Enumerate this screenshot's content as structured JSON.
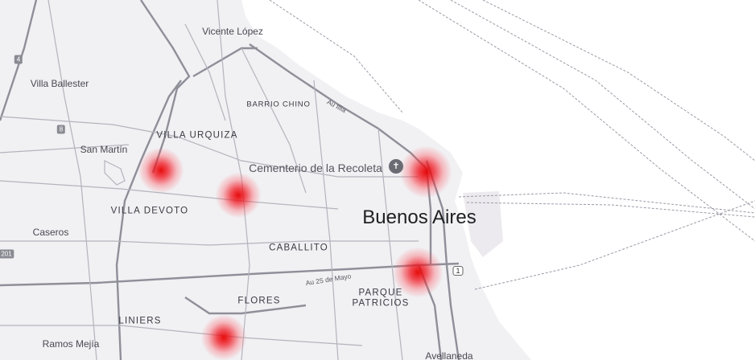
{
  "map": {
    "city_label": "Buenos Aires",
    "poi": {
      "name": "Cementerio de la Recoleta",
      "icon": "cemetery-icon"
    },
    "colors": {
      "land": "#f1f0f3",
      "water": "#ffffff",
      "roads": "#9a9aa4",
      "heat": "#e60000"
    },
    "places": [
      {
        "id": "vicente-lopez",
        "name": "Vicente López"
      },
      {
        "id": "villa-ballester",
        "name": "Villa Ballester"
      },
      {
        "id": "san-martin",
        "name": "San Martín"
      },
      {
        "id": "caseros",
        "name": "Caseros"
      },
      {
        "id": "ramos-mejia",
        "name": "Ramos Mejía"
      },
      {
        "id": "avellaneda",
        "name": "Avellaneda"
      }
    ],
    "neighborhoods": [
      {
        "id": "barrio-chino",
        "name": "BARRIO CHINO"
      },
      {
        "id": "villa-urquiza",
        "name": "VILLA URQUIZA"
      },
      {
        "id": "villa-devoto",
        "name": "VILLA DEVOTO"
      },
      {
        "id": "caballito",
        "name": "CABALLITO"
      },
      {
        "id": "flores",
        "name": "FLORES"
      },
      {
        "id": "parque-patricios-1",
        "name": "PARQUE"
      },
      {
        "id": "parque-patricios-2",
        "name": "PATRICIOS"
      },
      {
        "id": "liniers",
        "name": "LINIERS"
      }
    ],
    "road_labels": [
      {
        "id": "au-illia",
        "name": "Au Illia"
      },
      {
        "id": "au-25-de-mayo",
        "name": "Au 25 de Mayo"
      }
    ],
    "shields": [
      {
        "id": "route-4",
        "name": "4"
      },
      {
        "id": "route-8",
        "name": "8"
      },
      {
        "id": "route-201",
        "name": "201"
      },
      {
        "id": "route-1",
        "name": "1"
      }
    ],
    "heatmap_layer": "heatmap",
    "hotspot_count": 5
  }
}
